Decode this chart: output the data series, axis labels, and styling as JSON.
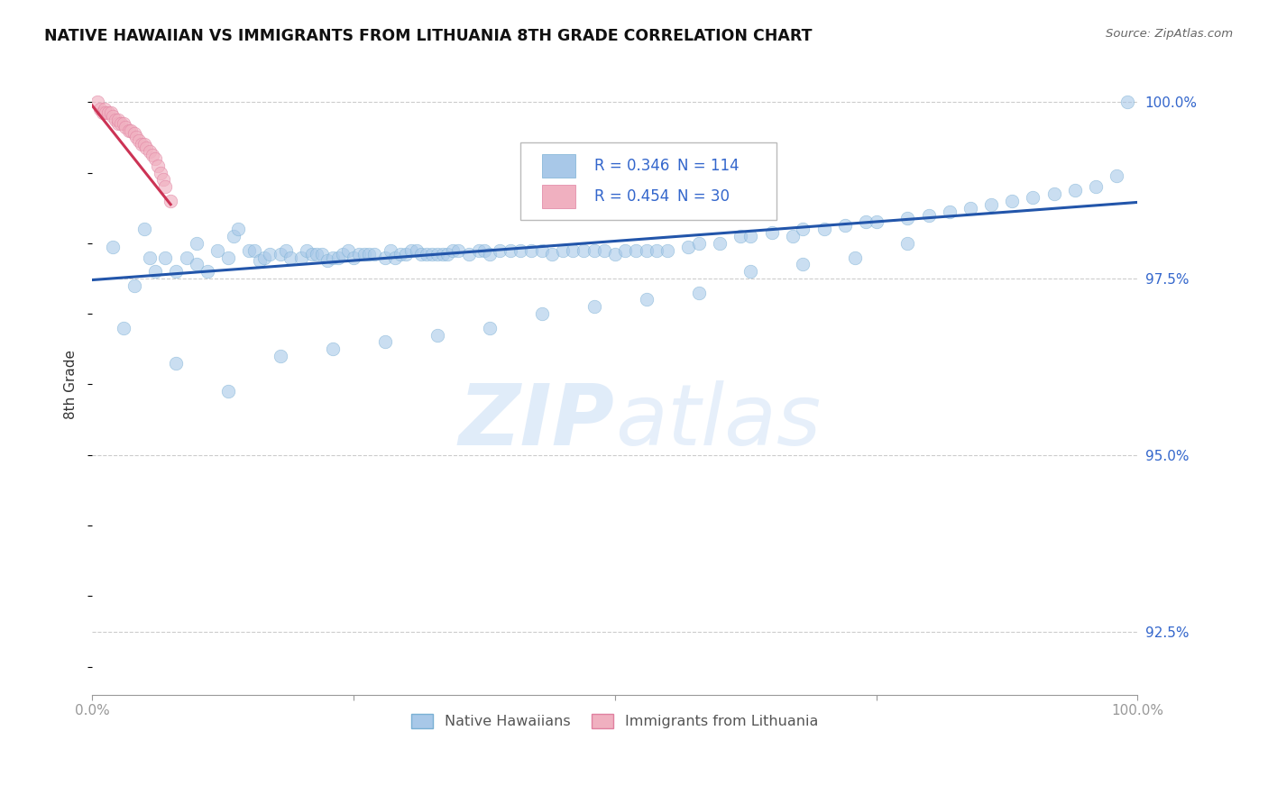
{
  "title": "NATIVE HAWAIIAN VS IMMIGRANTS FROM LITHUANIA 8TH GRADE CORRELATION CHART",
  "source": "Source: ZipAtlas.com",
  "ylabel": "8th Grade",
  "xlim": [
    0.0,
    1.0
  ],
  "ylim": [
    0.916,
    1.004
  ],
  "yticks": [
    0.925,
    0.95,
    0.975,
    1.0
  ],
  "ytick_labels": [
    "92.5%",
    "95.0%",
    "97.5%",
    "100.0%"
  ],
  "legend_r_blue": "R = 0.346",
  "legend_n_blue": "N = 114",
  "legend_r_pink": "R = 0.454",
  "legend_n_pink": "N = 30",
  "blue_color": "#a8c8e8",
  "pink_color": "#f0b0c0",
  "blue_edge_color": "#7ab0d4",
  "pink_edge_color": "#e080a0",
  "trendline_blue_color": "#2255aa",
  "trendline_pink_color": "#cc3355",
  "watermark_color": "#ddeeff",
  "legend_label_blue": "Native Hawaiians",
  "legend_label_pink": "Immigrants from Lithuania",
  "blue_scatter_x": [
    0.02,
    0.04,
    0.05,
    0.055,
    0.06,
    0.07,
    0.08,
    0.09,
    0.1,
    0.1,
    0.11,
    0.12,
    0.13,
    0.135,
    0.14,
    0.15,
    0.155,
    0.16,
    0.165,
    0.17,
    0.18,
    0.185,
    0.19,
    0.2,
    0.205,
    0.21,
    0.215,
    0.22,
    0.225,
    0.23,
    0.235,
    0.24,
    0.245,
    0.25,
    0.255,
    0.26,
    0.265,
    0.27,
    0.28,
    0.285,
    0.29,
    0.295,
    0.3,
    0.305,
    0.31,
    0.315,
    0.32,
    0.325,
    0.33,
    0.335,
    0.34,
    0.345,
    0.35,
    0.36,
    0.37,
    0.375,
    0.38,
    0.39,
    0.4,
    0.41,
    0.42,
    0.43,
    0.44,
    0.45,
    0.46,
    0.47,
    0.48,
    0.49,
    0.5,
    0.51,
    0.52,
    0.53,
    0.54,
    0.55,
    0.57,
    0.58,
    0.6,
    0.62,
    0.63,
    0.65,
    0.67,
    0.68,
    0.7,
    0.72,
    0.74,
    0.75,
    0.78,
    0.8,
    0.82,
    0.84,
    0.86,
    0.88,
    0.9,
    0.92,
    0.94,
    0.96,
    0.98,
    0.99,
    0.03,
    0.08,
    0.13,
    0.18,
    0.23,
    0.28,
    0.33,
    0.38,
    0.43,
    0.48,
    0.53,
    0.58,
    0.63,
    0.68,
    0.73,
    0.78
  ],
  "blue_scatter_y": [
    0.9795,
    0.974,
    0.982,
    0.978,
    0.976,
    0.978,
    0.976,
    0.978,
    0.977,
    0.98,
    0.976,
    0.979,
    0.978,
    0.981,
    0.982,
    0.979,
    0.979,
    0.9775,
    0.978,
    0.9785,
    0.9785,
    0.979,
    0.978,
    0.978,
    0.979,
    0.9785,
    0.9785,
    0.9785,
    0.9775,
    0.978,
    0.978,
    0.9785,
    0.979,
    0.978,
    0.9785,
    0.9785,
    0.9785,
    0.9785,
    0.978,
    0.979,
    0.978,
    0.9785,
    0.9785,
    0.979,
    0.979,
    0.9785,
    0.9785,
    0.9785,
    0.9785,
    0.9785,
    0.9785,
    0.979,
    0.979,
    0.9785,
    0.979,
    0.979,
    0.9785,
    0.979,
    0.979,
    0.979,
    0.979,
    0.979,
    0.9785,
    0.979,
    0.979,
    0.979,
    0.979,
    0.979,
    0.9785,
    0.979,
    0.979,
    0.979,
    0.979,
    0.979,
    0.9795,
    0.98,
    0.98,
    0.981,
    0.981,
    0.9815,
    0.981,
    0.982,
    0.982,
    0.9825,
    0.983,
    0.983,
    0.9835,
    0.984,
    0.9845,
    0.985,
    0.9855,
    0.986,
    0.9865,
    0.987,
    0.9875,
    0.988,
    0.9895,
    1.0,
    0.968,
    0.963,
    0.959,
    0.964,
    0.965,
    0.966,
    0.967,
    0.968,
    0.97,
    0.971,
    0.972,
    0.973,
    0.976,
    0.977,
    0.978,
    0.98
  ],
  "pink_scatter_x": [
    0.005,
    0.008,
    0.01,
    0.012,
    0.013,
    0.015,
    0.018,
    0.02,
    0.022,
    0.025,
    0.025,
    0.027,
    0.03,
    0.032,
    0.035,
    0.037,
    0.04,
    0.042,
    0.045,
    0.047,
    0.05,
    0.052,
    0.055,
    0.058,
    0.06,
    0.063,
    0.065,
    0.068,
    0.07,
    0.075
  ],
  "pink_scatter_y": [
    1.0,
    0.999,
    0.9985,
    0.999,
    0.9985,
    0.9985,
    0.9985,
    0.998,
    0.9975,
    0.997,
    0.9975,
    0.997,
    0.997,
    0.9965,
    0.996,
    0.996,
    0.9955,
    0.995,
    0.9945,
    0.994,
    0.994,
    0.9935,
    0.993,
    0.9925,
    0.992,
    0.991,
    0.99,
    0.989,
    0.988,
    0.986
  ],
  "blue_trend_x": [
    0.0,
    1.0
  ],
  "blue_trend_y": [
    0.9748,
    0.9858
  ],
  "pink_trend_x": [
    0.0,
    0.075
  ],
  "pink_trend_y": [
    0.9995,
    0.9855
  ],
  "grid_color": "#cccccc",
  "grid_style": "--",
  "bottom_border_color": "#999999"
}
